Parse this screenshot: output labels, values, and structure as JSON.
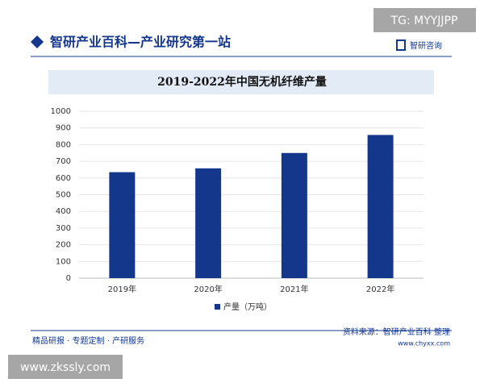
{
  "header": {
    "title": "智研产业百科—产业研究第一站",
    "logo": "智研咨询",
    "tag": "TG: MYYJJPP"
  },
  "chart_data": {
    "type": "bar",
    "title": "2019-2022年中国无机纤维产量",
    "categories": [
      "2019年",
      "2020年",
      "2021年",
      "2022年"
    ],
    "series": [
      {
        "name": "产量（万吨）",
        "color": "#14378c",
        "values": [
          635,
          658,
          750,
          858
        ]
      }
    ],
    "ylim": [
      0,
      1000
    ],
    "yticks": [
      0,
      100,
      200,
      300,
      400,
      500,
      600,
      700,
      800,
      900,
      1000
    ],
    "grid": true,
    "legend": "bottom"
  },
  "footer": {
    "left": "精品研报 · 专题定制 · 产研服务",
    "source": "资料来源：智研产业百科 整理",
    "url": "www.chyxx.com"
  },
  "watermark": "www.zkssly.com"
}
